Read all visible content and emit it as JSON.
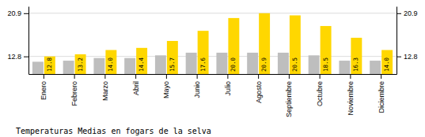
{
  "chart_data": {
    "type": "bar",
    "title": "Temperaturas Medias en fogars de la selva",
    "categories": [
      "Enero",
      "Febrero",
      "Marzo",
      "Abril",
      "Mayo",
      "Junio",
      "Julio",
      "Agosto",
      "Septiembre",
      "Octubre",
      "Noviembre",
      "Diciembre"
    ],
    "series": [
      {
        "color": "#BEBEBE",
        "values": [
          11.8,
          12.0,
          12.5,
          12.5,
          13.0,
          13.5,
          13.5,
          13.5,
          13.5,
          13.0,
          12.0,
          12.0
        ]
      },
      {
        "color": "#FFD700",
        "values": [
          12.8,
          13.2,
          14.0,
          14.4,
          15.7,
          17.6,
          20.0,
          20.9,
          20.5,
          18.5,
          16.3,
          14.0
        ],
        "value_labels": [
          "12.8",
          "13.2",
          "14.0",
          "14.4",
          "15.7",
          "17.6",
          "20.0",
          "20.9",
          "20.5",
          "18.5",
          "16.3",
          "14.0"
        ],
        "data_labels": true
      }
    ],
    "ylim": [
      9.5,
      22.2
    ],
    "yticks": [
      12.8,
      20.9
    ],
    "grid": true
  }
}
